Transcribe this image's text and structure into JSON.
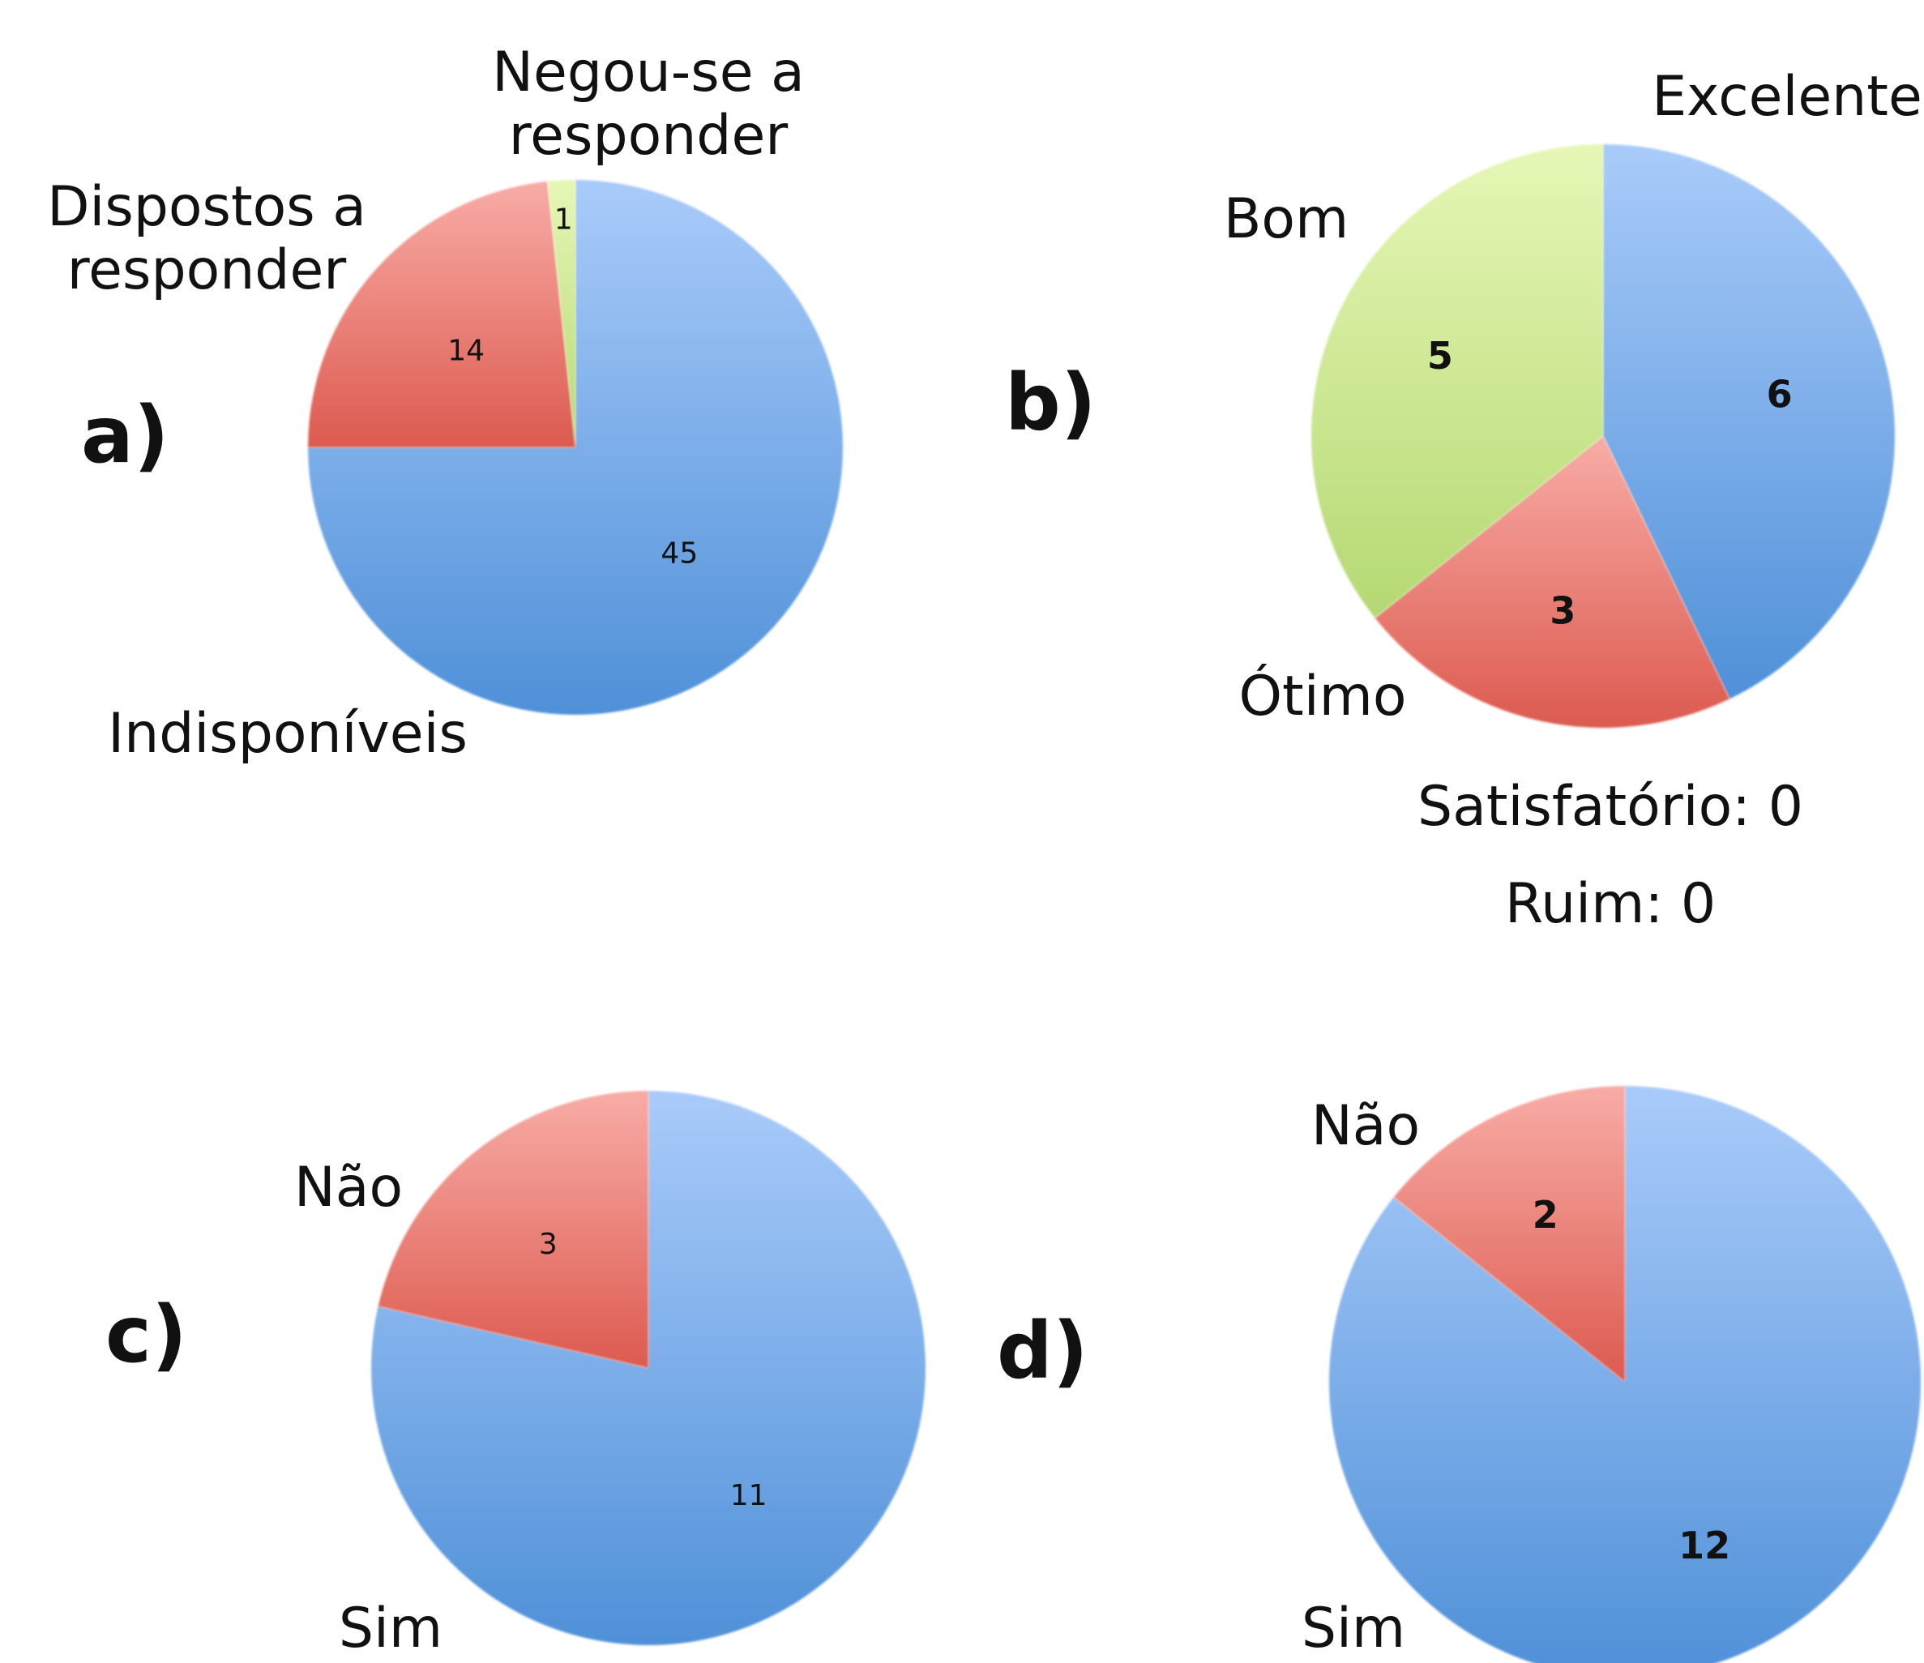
{
  "chart_data": [
    {
      "type": "pie",
      "panel_label": "a)",
      "slices": [
        {
          "label": "Indisponíveis",
          "value": 45,
          "value_label": "45",
          "color": "#6fa3e6"
        },
        {
          "label": "Dispostos a responder",
          "value": 14,
          "value_label": "14",
          "color": "#ea7b73"
        },
        {
          "label": "Negou-se a responder",
          "value": 1,
          "value_label": "1",
          "color": "#cde891"
        }
      ]
    },
    {
      "type": "pie",
      "panel_label": "b)",
      "slices": [
        {
          "label": "Excelente",
          "value": 6,
          "value_label": "6",
          "color": "#6fa3e6"
        },
        {
          "label": "Ótimo",
          "value": 3,
          "value_label": "3",
          "color": "#ea7b73"
        },
        {
          "label": "Bom",
          "value": 5,
          "value_label": "5",
          "color": "#c4e285"
        }
      ],
      "notes": [
        "Satisfatório: 0",
        "Ruim: 0"
      ]
    },
    {
      "type": "pie",
      "panel_label": "c)",
      "slices": [
        {
          "label": "Sim",
          "value": 11,
          "value_label": "11",
          "color": "#6fa3e6"
        },
        {
          "label": "Não",
          "value": 3,
          "value_label": "3",
          "color": "#ea7b73"
        }
      ]
    },
    {
      "type": "pie",
      "panel_label": "d)",
      "slices": [
        {
          "label": "Sim",
          "value": 12,
          "value_label": "12",
          "color": "#6fa3e6"
        },
        {
          "label": "Não",
          "value": 2,
          "value_label": "2",
          "color": "#ea7b73"
        }
      ]
    }
  ]
}
